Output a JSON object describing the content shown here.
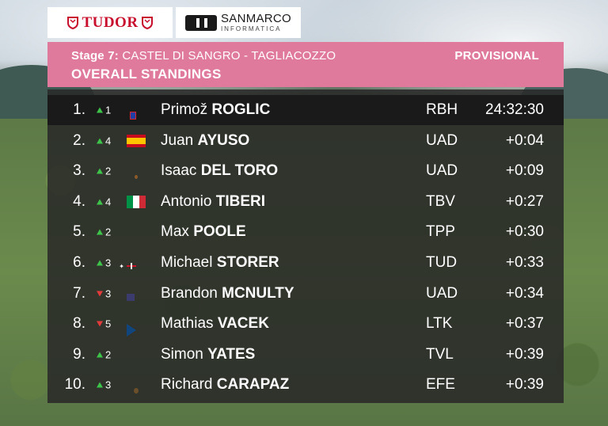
{
  "sponsors": {
    "tudor": "TUDOR",
    "sanmarco_name": "SANMARCO",
    "sanmarco_sub": "INFORMATICA"
  },
  "header": {
    "stage_label": "Stage 7:",
    "stage_route": "CASTEL DI SANGRO - TAGLIACOZZO",
    "status": "PROVISIONAL",
    "title": "OVERALL STANDINGS"
  },
  "colors": {
    "header_pink": "#e07a9d",
    "up_green": "#3ec44b",
    "down_red": "#e33b3b"
  },
  "standings": [
    {
      "pos": "1.",
      "dir": "up",
      "move": "1",
      "flag": "si",
      "first": "Primož",
      "last": "ROGLIC",
      "team": "RBH",
      "time": "24:32:30"
    },
    {
      "pos": "2.",
      "dir": "up",
      "move": "4",
      "flag": "es",
      "first": "Juan",
      "last": "AYUSO",
      "team": "UAD",
      "time": "+0:04"
    },
    {
      "pos": "3.",
      "dir": "up",
      "move": "2",
      "flag": "mx",
      "first": "Isaac",
      "last": "DEL TORO",
      "team": "UAD",
      "time": "+0:09"
    },
    {
      "pos": "4.",
      "dir": "up",
      "move": "4",
      "flag": "it",
      "first": "Antonio",
      "last": "TIBERI",
      "team": "TBV",
      "time": "+0:27"
    },
    {
      "pos": "5.",
      "dir": "up",
      "move": "2",
      "flag": "gb",
      "first": "Max",
      "last": "POOLE",
      "team": "TPP",
      "time": "+0:30"
    },
    {
      "pos": "6.",
      "dir": "up",
      "move": "3",
      "flag": "au",
      "first": "Michael",
      "last": "STORER",
      "team": "TUD",
      "time": "+0:33"
    },
    {
      "pos": "7.",
      "dir": "down",
      "move": "3",
      "flag": "us",
      "first": "Brandon",
      "last": "MCNULTY",
      "team": "UAD",
      "time": "+0:34"
    },
    {
      "pos": "8.",
      "dir": "down",
      "move": "5",
      "flag": "cz",
      "first": "Mathias",
      "last": "VACEK",
      "team": "LTK",
      "time": "+0:37"
    },
    {
      "pos": "9.",
      "dir": "up",
      "move": "2",
      "flag": "gb",
      "first": "Simon",
      "last": "YATES",
      "team": "TVL",
      "time": "+0:39"
    },
    {
      "pos": "10.",
      "dir": "up",
      "move": "3",
      "flag": "ec",
      "first": "Richard",
      "last": "CARAPAZ",
      "team": "EFE",
      "time": "+0:39"
    }
  ]
}
